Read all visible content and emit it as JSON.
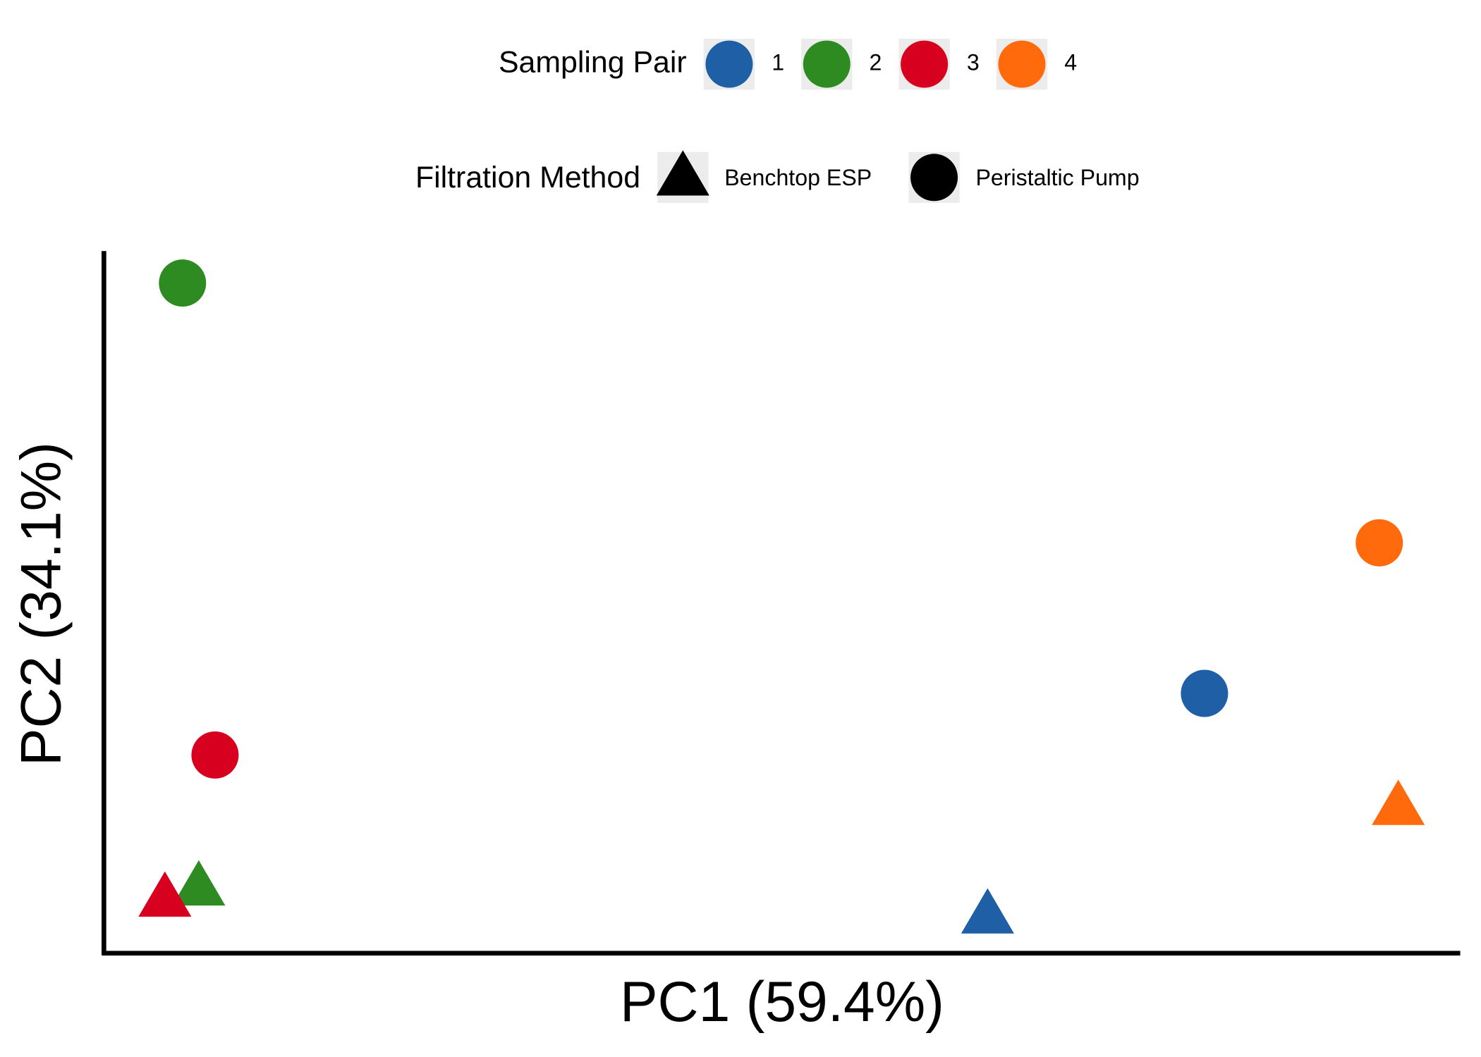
{
  "chart_data": {
    "type": "scatter",
    "x_label": "PC1 (59.4%)",
    "y_label": "PC2 (34.1%)",
    "xlim": [
      0,
      100
    ],
    "ylim": [
      0,
      100
    ],
    "color_legend_title": "Sampling Pair",
    "shape_legend": {
      "title": "Filtration Method",
      "items": [
        {
          "name": "Benchtop ESP",
          "shape": "triangle"
        },
        {
          "name": "Peristaltic Pump",
          "shape": "circle"
        }
      ]
    },
    "series": [
      {
        "name": "1",
        "color": "#1f5fa6",
        "x": [
          65.2,
          81.2
        ],
        "values": [
          5.4,
          37.1
        ],
        "shapes": [
          "triangle",
          "circle"
        ]
      },
      {
        "name": "2",
        "color": "#2e8b22",
        "x": [
          7.0,
          5.8
        ],
        "values": [
          9.4,
          95.7
        ],
        "shapes": [
          "triangle",
          "circle"
        ]
      },
      {
        "name": "3",
        "color": "#d7001e",
        "x": [
          4.5,
          8.2
        ],
        "values": [
          7.8,
          28.3
        ],
        "shapes": [
          "triangle",
          "circle"
        ]
      },
      {
        "name": "4",
        "color": "#ff6a0d",
        "x": [
          95.5,
          94.1
        ],
        "values": [
          20.9,
          58.6
        ],
        "shapes": [
          "triangle",
          "circle"
        ]
      }
    ]
  }
}
